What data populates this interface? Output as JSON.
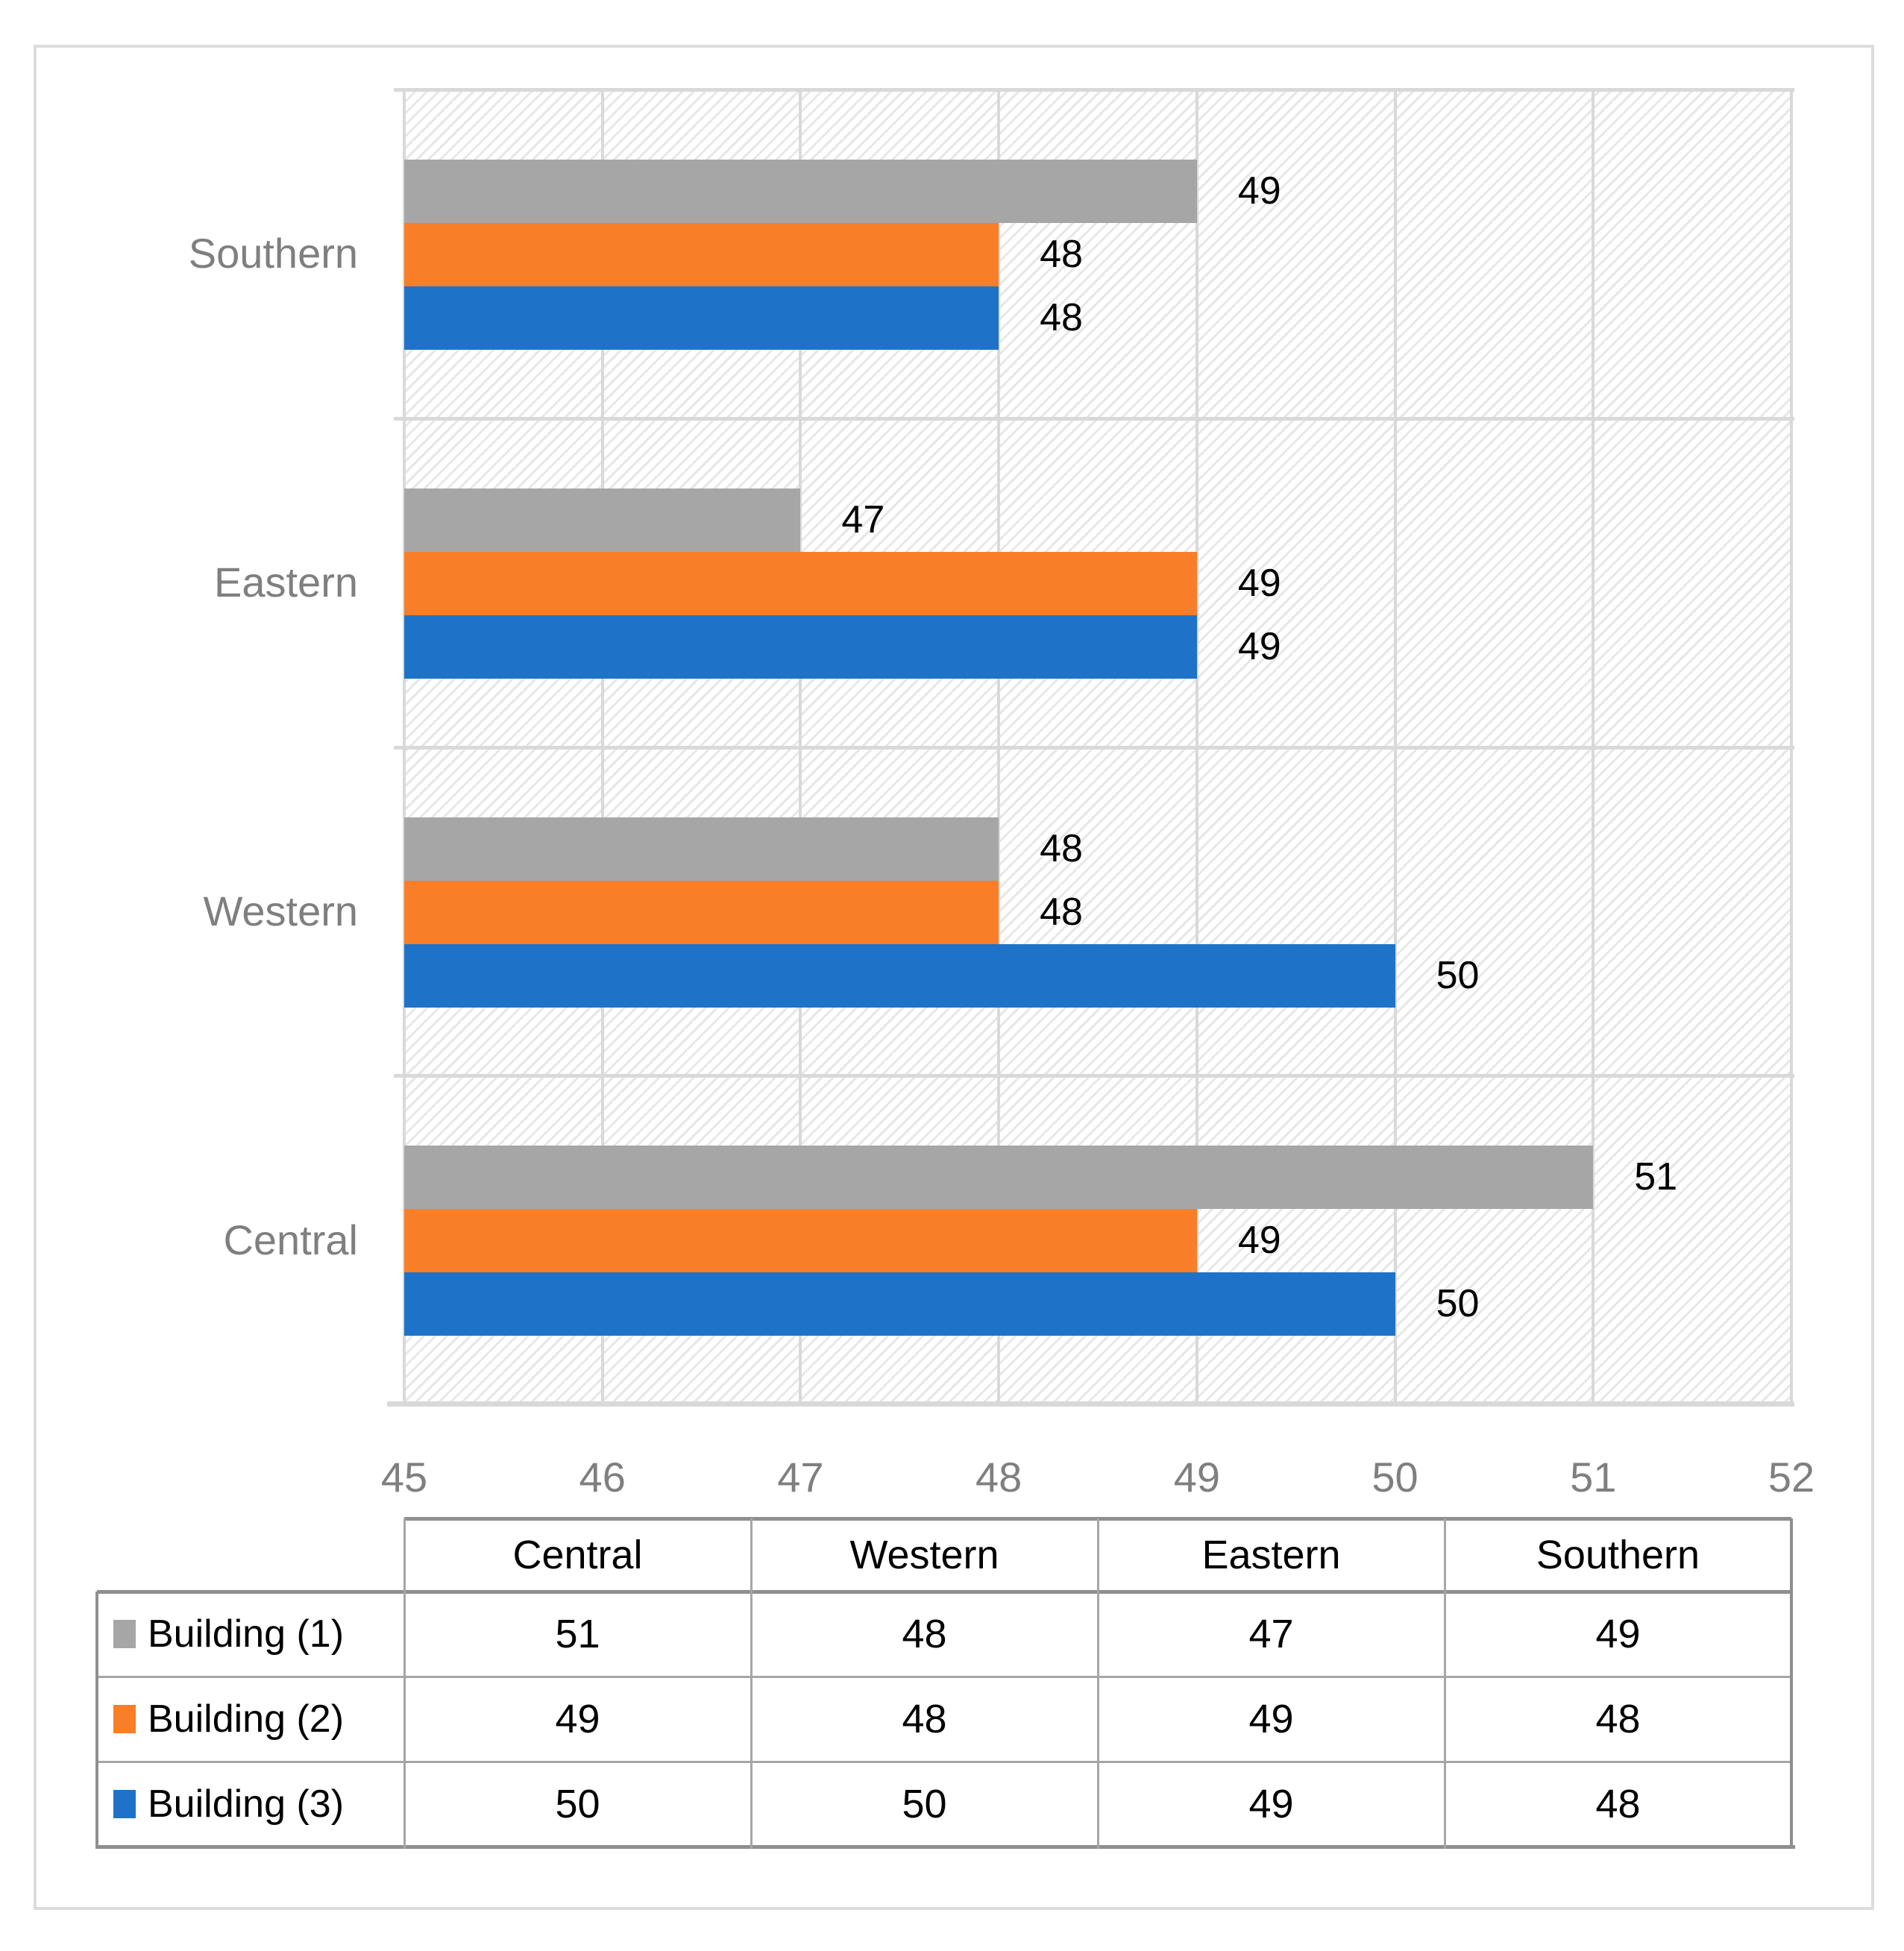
{
  "figure": {
    "description": "Grouped horizontal bar chart with hatched plot background, bar data labels, and a data table with legend keys below the x-axis"
  },
  "chart_data": {
    "type": "bar",
    "orientation": "horizontal",
    "title": "",
    "xlabel": "",
    "ylabel": "",
    "xlim": [
      45,
      52
    ],
    "xticks": [
      "45",
      "46",
      "47",
      "48",
      "49",
      "50",
      "51",
      "52"
    ],
    "grid": "vertical gridlines on, diagonal-hatch plot background",
    "legend_position": "table-left-column",
    "data_labels_visible": true,
    "categories_top_to_bottom": [
      "Southern",
      "Eastern",
      "Western",
      "Central"
    ],
    "columns": [
      "Central",
      "Western",
      "Eastern",
      "Southern"
    ],
    "series": [
      {
        "name": "Building (1)",
        "color": "#a6a6a6",
        "values": [
          51,
          48,
          47,
          49
        ]
      },
      {
        "name": "Building (2)",
        "color": "#f87e28",
        "values": [
          49,
          48,
          49,
          48
        ]
      },
      {
        "name": "Building (3)",
        "color": "#1e73c8",
        "values": [
          50,
          50,
          49,
          48
        ]
      }
    ]
  },
  "colors": {
    "gridline": "#d9d9d9",
    "axis_text": "#7f7f7f",
    "data_label_text": "#000000",
    "table_border_strong": "#8f8f8f",
    "table_border_light": "#a6a6a6",
    "outer_frame": "#dcdcdc",
    "hatch_line": "#e7e7e7",
    "background": "#ffffff"
  }
}
